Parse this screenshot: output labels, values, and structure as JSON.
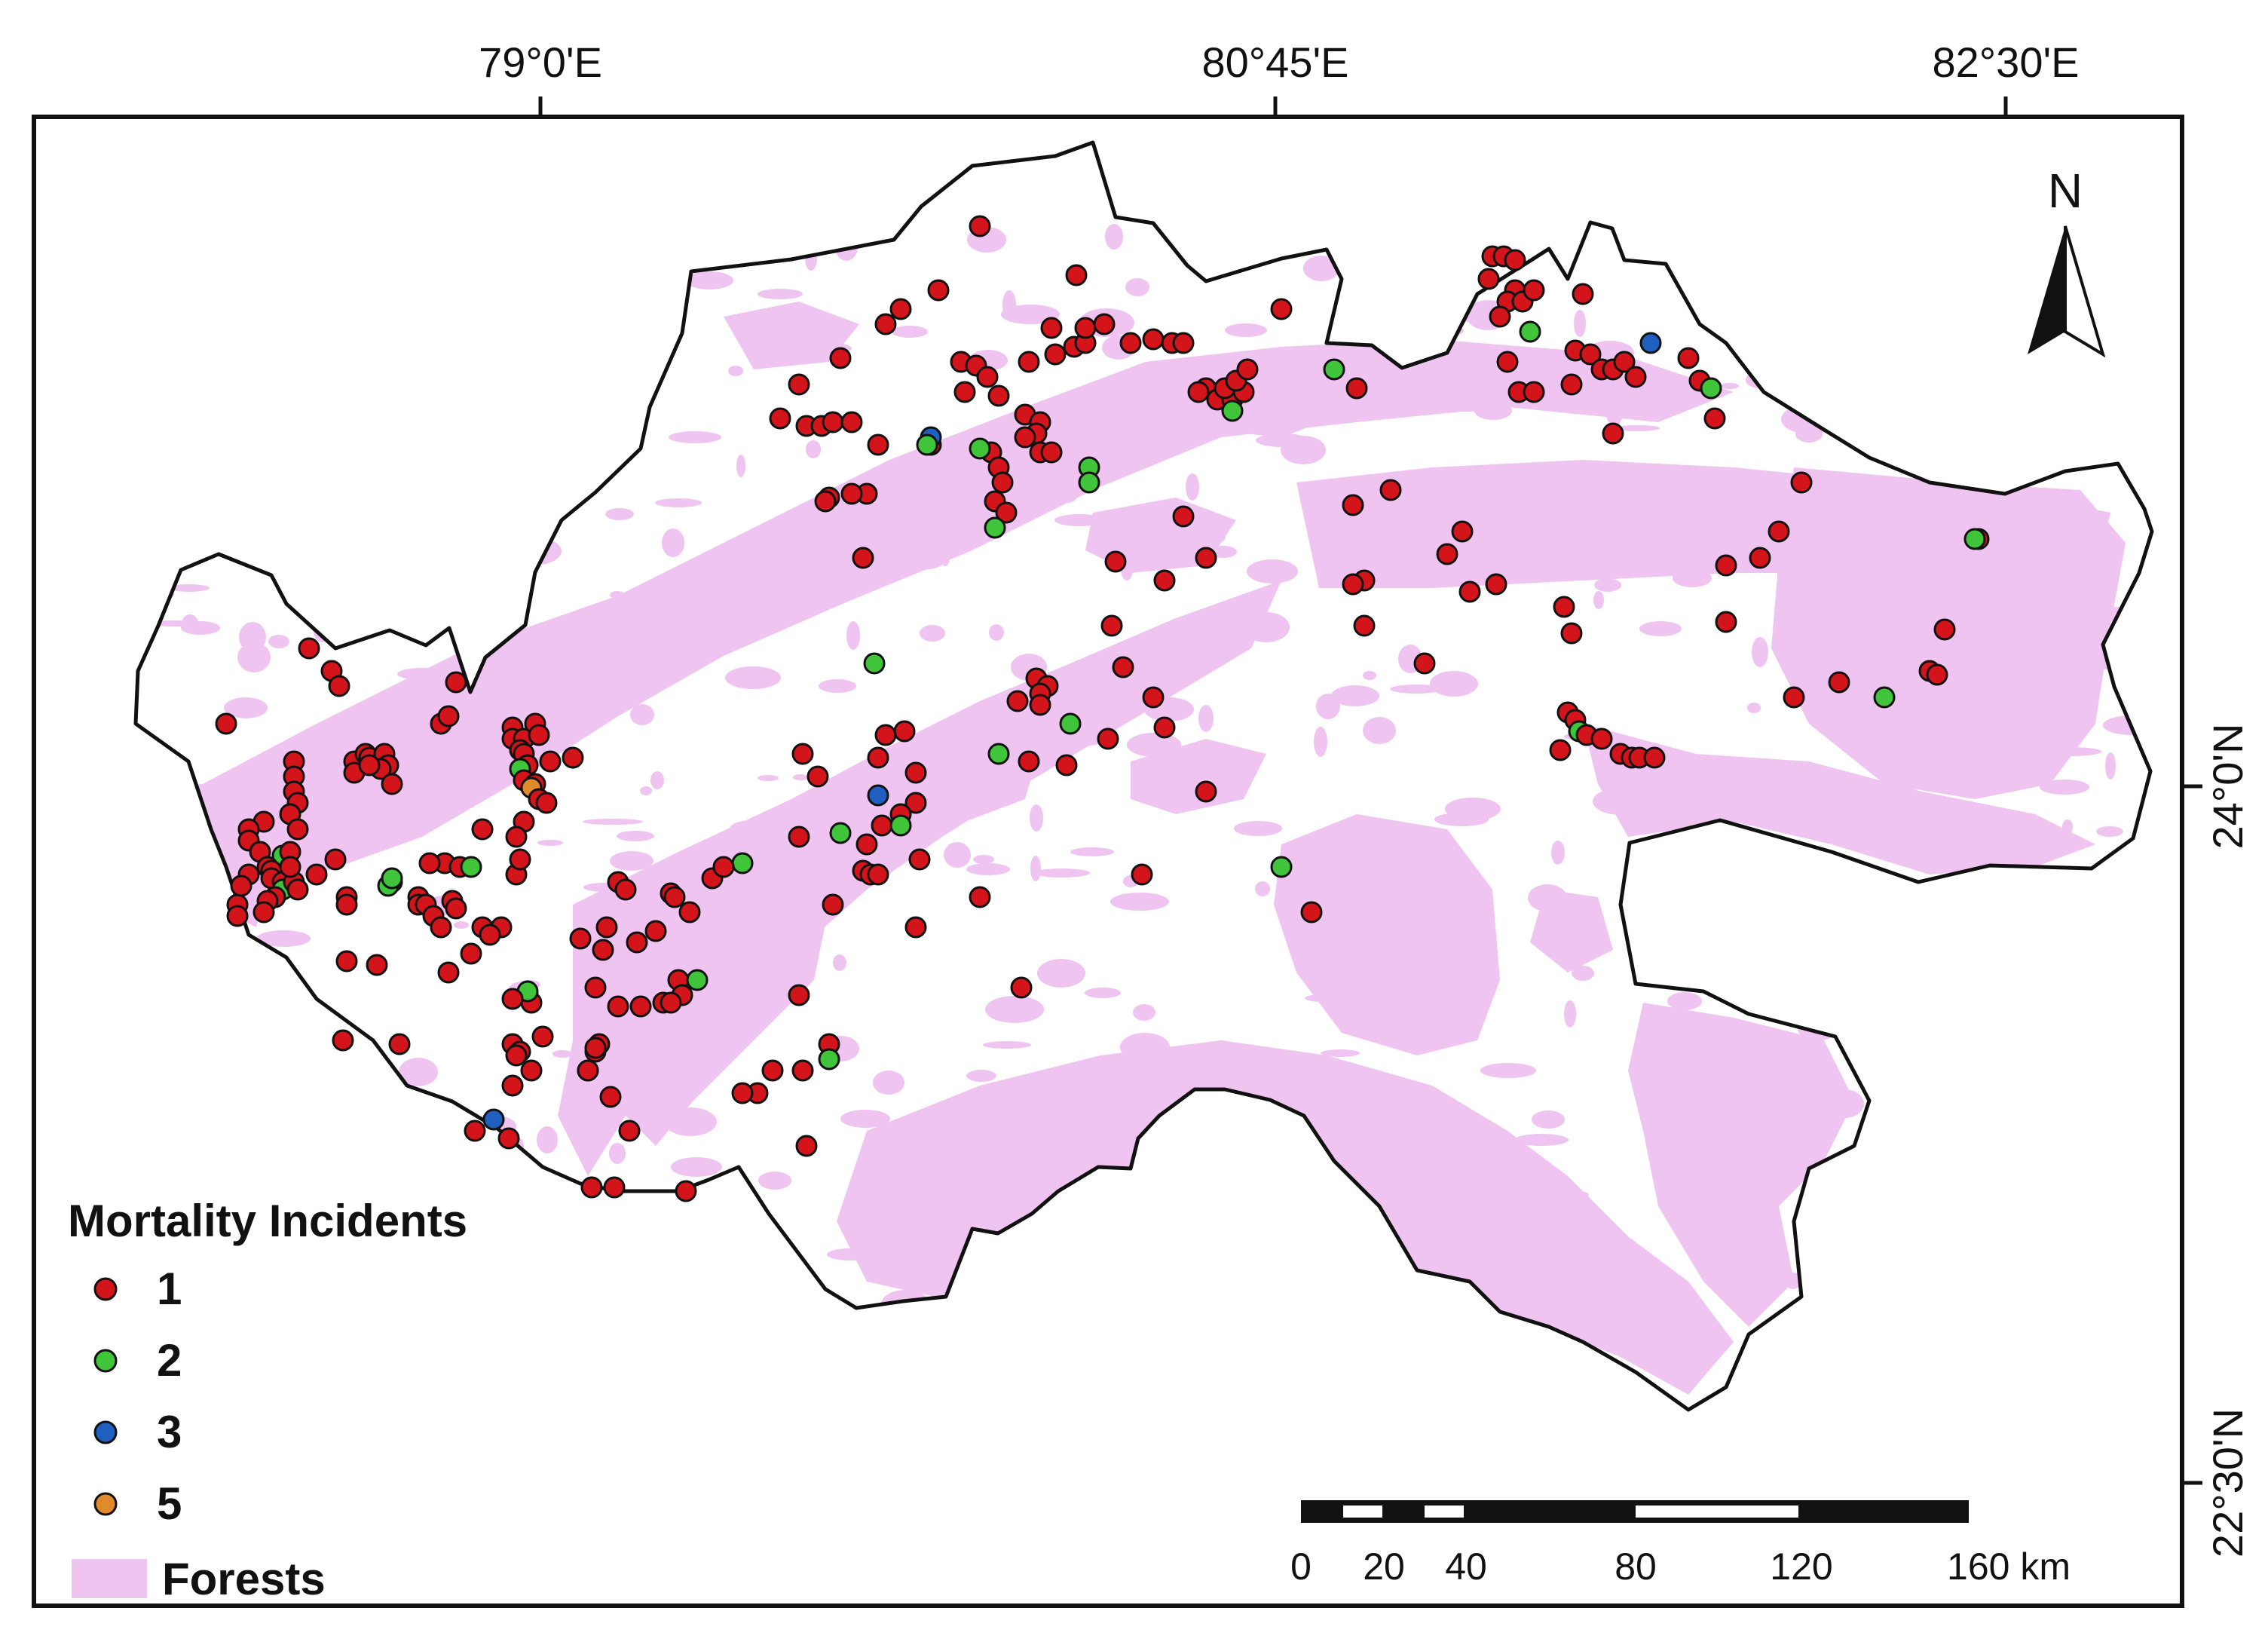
{
  "map": {
    "longitude_labels": [
      "79°0'E",
      "80°45'E",
      "82°30'E"
    ],
    "latitude_labels": [
      "24°0'N",
      "22°30'N"
    ],
    "north_arrow_label": "N",
    "forest_color": "#efc4f1",
    "boundary_color": "#111111"
  },
  "legend": {
    "title": "Mortality Incidents",
    "items": [
      {
        "label": "1",
        "color": "#d4141b"
      },
      {
        "label": "2",
        "color": "#3fc43a"
      },
      {
        "label": "3",
        "color": "#1f5fbf"
      },
      {
        "label": "5",
        "color": "#e08a2c"
      }
    ],
    "forest_label": "Forests"
  },
  "scale_bar": {
    "ticks": [
      "0",
      "20",
      "40",
      "80",
      "120",
      "160 km"
    ]
  }
}
